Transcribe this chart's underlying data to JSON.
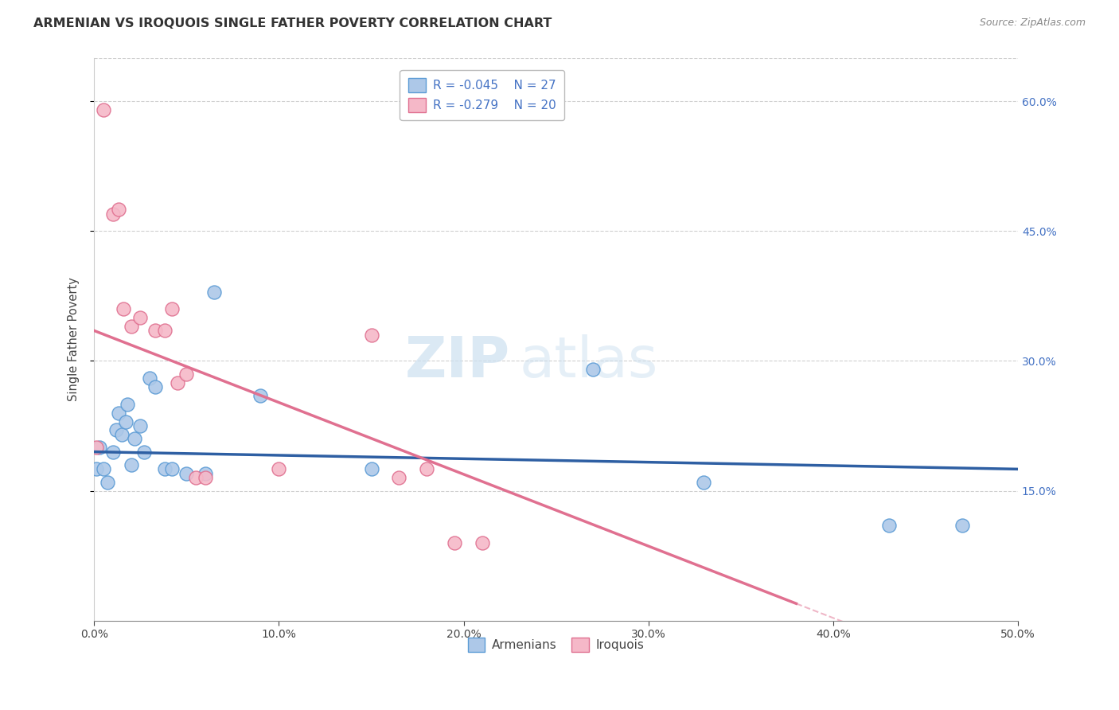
{
  "title": "ARMENIAN VS IROQUOIS SINGLE FATHER POVERTY CORRELATION CHART",
  "source": "Source: ZipAtlas.com",
  "ylabel": "Single Father Poverty",
  "xlim": [
    0.0,
    0.5
  ],
  "ylim": [
    0.0,
    0.65
  ],
  "xticks": [
    0.0,
    0.1,
    0.2,
    0.3,
    0.4,
    0.5
  ],
  "yticks": [
    0.15,
    0.3,
    0.45,
    0.6
  ],
  "ytick_labels_right": [
    "15.0%",
    "30.0%",
    "45.0%",
    "60.0%"
  ],
  "xtick_labels": [
    "0.0%",
    "10.0%",
    "20.0%",
    "30.0%",
    "40.0%",
    "50.0%"
  ],
  "armenian_color": "#adc8e8",
  "iroquois_color": "#f5b8c8",
  "armenian_edge": "#5b9bd5",
  "iroquois_edge": "#e07090",
  "trend_armenian_color": "#2e5fa3",
  "trend_iroquois_color": "#e07090",
  "legend_R_armenian": "-0.045",
  "legend_N_armenian": "27",
  "legend_R_iroquois": "-0.279",
  "legend_N_iroquois": "20",
  "watermark_zip": "ZIP",
  "watermark_atlas": "atlas",
  "armenian_x": [
    0.001,
    0.003,
    0.005,
    0.007,
    0.01,
    0.012,
    0.013,
    0.015,
    0.017,
    0.018,
    0.02,
    0.022,
    0.025,
    0.027,
    0.03,
    0.033,
    0.038,
    0.042,
    0.05,
    0.06,
    0.065,
    0.09,
    0.15,
    0.27,
    0.33,
    0.43,
    0.47
  ],
  "armenian_y": [
    0.175,
    0.2,
    0.175,
    0.16,
    0.195,
    0.22,
    0.24,
    0.215,
    0.23,
    0.25,
    0.18,
    0.21,
    0.225,
    0.195,
    0.28,
    0.27,
    0.175,
    0.175,
    0.17,
    0.17,
    0.38,
    0.26,
    0.175,
    0.29,
    0.16,
    0.11,
    0.11
  ],
  "iroquois_x": [
    0.001,
    0.005,
    0.01,
    0.013,
    0.016,
    0.02,
    0.025,
    0.033,
    0.038,
    0.042,
    0.045,
    0.05,
    0.055,
    0.06,
    0.1,
    0.15,
    0.165,
    0.18,
    0.195,
    0.21
  ],
  "iroquois_y": [
    0.2,
    0.59,
    0.47,
    0.475,
    0.36,
    0.34,
    0.35,
    0.335,
    0.335,
    0.36,
    0.275,
    0.285,
    0.165,
    0.165,
    0.175,
    0.33,
    0.165,
    0.175,
    0.09,
    0.09
  ],
  "background_color": "#ffffff",
  "grid_color": "#d0d0d0",
  "trend_iroquois_solid_end": 0.38,
  "trend_iroquois_dash_start": 0.38
}
